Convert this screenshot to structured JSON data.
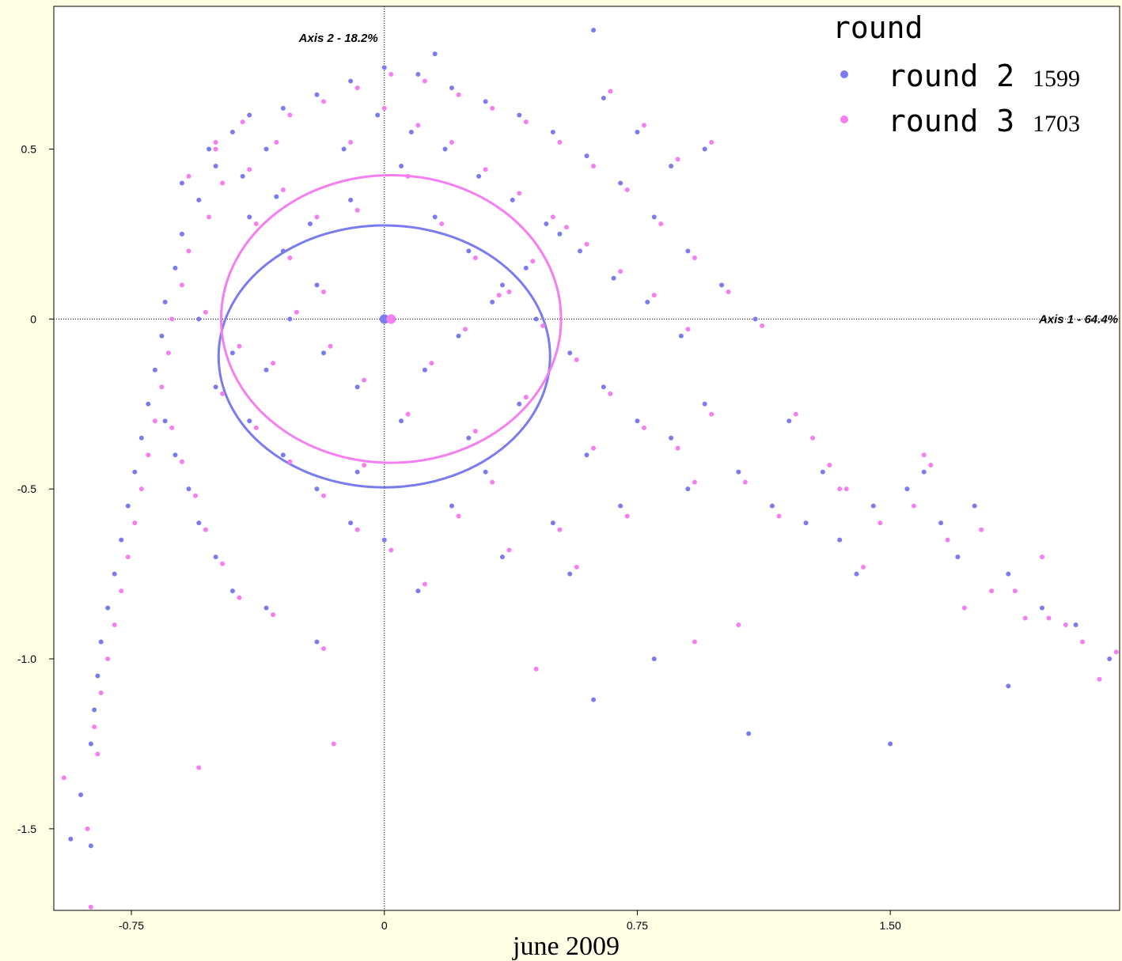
{
  "chart_data": {
    "type": "scatter",
    "x_axis": {
      "title": "Axis 1 - 64.4%",
      "range": [
        -0.98,
        2.18
      ],
      "ticks": [
        -0.75,
        0,
        0.75,
        1.5
      ],
      "tick_labels": [
        "-0.75",
        "0",
        "0.75",
        "1.50"
      ]
    },
    "y_axis": {
      "title": "Axis 2 - 18.2%",
      "range": [
        -1.74,
        0.92
      ],
      "ticks": [
        0.5,
        0,
        -0.5,
        -1.0,
        -1.5
      ],
      "tick_labels": [
        "0.5",
        "0",
        "-0.5",
        "-1.0",
        "-1.5"
      ]
    },
    "grid": false,
    "origin_lines": true,
    "legend": {
      "title": "round",
      "placement": "top-right",
      "entries": [
        {
          "label": "round 2",
          "count": "1599",
          "color": "#7b7bf0"
        },
        {
          "label": "round 3",
          "count": "1703",
          "color": "#f57ef0"
        }
      ]
    },
    "series": [
      {
        "name": "round 2",
        "color": "#7b7bf0",
        "count": 1599,
        "centroid": [
          0.0,
          0.0
        ],
        "ellipse": {
          "cx": 0.0,
          "cy": -0.11,
          "rx": 1.17,
          "ry": 0.82
        },
        "points": [
          [
            -0.45,
            0.55
          ],
          [
            -0.4,
            0.6
          ],
          [
            -0.35,
            0.5
          ],
          [
            -0.5,
            0.45
          ],
          [
            -0.55,
            0.35
          ],
          [
            -0.6,
            0.25
          ],
          [
            -0.62,
            0.15
          ],
          [
            -0.65,
            0.05
          ],
          [
            -0.66,
            -0.05
          ],
          [
            -0.68,
            -0.15
          ],
          [
            -0.7,
            -0.25
          ],
          [
            -0.72,
            -0.35
          ],
          [
            -0.74,
            -0.45
          ],
          [
            -0.76,
            -0.55
          ],
          [
            -0.78,
            -0.65
          ],
          [
            -0.8,
            -0.75
          ],
          [
            -0.82,
            -0.85
          ],
          [
            -0.84,
            -0.95
          ],
          [
            -0.85,
            -1.05
          ],
          [
            -0.86,
            -1.15
          ],
          [
            -0.87,
            -1.25
          ],
          [
            -0.9,
            -1.4
          ],
          [
            -0.93,
            -1.53
          ],
          [
            -0.87,
            -1.55
          ],
          [
            -0.3,
            0.62
          ],
          [
            -0.2,
            0.66
          ],
          [
            -0.1,
            0.7
          ],
          [
            0.0,
            0.74
          ],
          [
            0.1,
            0.72
          ],
          [
            0.2,
            0.68
          ],
          [
            0.3,
            0.64
          ],
          [
            0.4,
            0.6
          ],
          [
            0.5,
            0.55
          ],
          [
            0.6,
            0.48
          ],
          [
            0.7,
            0.4
          ],
          [
            0.8,
            0.3
          ],
          [
            0.9,
            0.2
          ],
          [
            1.0,
            0.1
          ],
          [
            1.1,
            0.0
          ],
          [
            -0.4,
            0.3
          ],
          [
            -0.3,
            0.2
          ],
          [
            -0.2,
            0.1
          ],
          [
            -0.1,
            0.35
          ],
          [
            0.05,
            0.45
          ],
          [
            0.15,
            0.3
          ],
          [
            0.25,
            0.2
          ],
          [
            0.35,
            0.1
          ],
          [
            0.45,
            0.0
          ],
          [
            0.55,
            -0.1
          ],
          [
            0.65,
            -0.2
          ],
          [
            0.75,
            -0.3
          ],
          [
            0.85,
            -0.35
          ],
          [
            0.95,
            -0.25
          ],
          [
            1.05,
            -0.45
          ],
          [
            1.15,
            -0.55
          ],
          [
            1.25,
            -0.6
          ],
          [
            1.35,
            -0.65
          ],
          [
            1.45,
            -0.55
          ],
          [
            1.55,
            -0.5
          ],
          [
            1.65,
            -0.6
          ],
          [
            1.75,
            -0.55
          ],
          [
            1.85,
            -0.75
          ],
          [
            1.95,
            -0.85
          ],
          [
            2.05,
            -0.9
          ],
          [
            2.15,
            -1.0
          ],
          [
            -0.5,
            -0.2
          ],
          [
            -0.4,
            -0.3
          ],
          [
            -0.3,
            -0.4
          ],
          [
            -0.2,
            -0.5
          ],
          [
            -0.1,
            -0.6
          ],
          [
            0.0,
            -0.65
          ],
          [
            0.2,
            -0.55
          ],
          [
            0.3,
            -0.45
          ],
          [
            0.5,
            -0.6
          ],
          [
            0.7,
            -0.55
          ],
          [
            0.8,
            -1.0
          ],
          [
            0.62,
            -1.12
          ],
          [
            1.08,
            -1.22
          ],
          [
            1.5,
            -1.25
          ],
          [
            1.85,
            -1.08
          ],
          [
            0.62,
            0.85
          ],
          [
            0.15,
            0.78
          ],
          [
            -0.55,
            0.0
          ],
          [
            -0.45,
            -0.1
          ],
          [
            -0.35,
            -0.15
          ],
          [
            0.05,
            -0.3
          ],
          [
            0.25,
            -0.35
          ],
          [
            0.4,
            -0.25
          ],
          [
            0.6,
            -0.4
          ],
          [
            0.9,
            -0.5
          ],
          [
            1.2,
            -0.3
          ],
          [
            1.3,
            -0.45
          ],
          [
            1.4,
            -0.75
          ],
          [
            1.6,
            -0.45
          ],
          [
            1.7,
            -0.7
          ],
          [
            -0.6,
            0.4
          ],
          [
            -0.52,
            0.5
          ],
          [
            -0.42,
            0.42
          ],
          [
            -0.32,
            0.36
          ],
          [
            -0.22,
            0.28
          ],
          [
            -0.12,
            0.5
          ],
          [
            -0.02,
            0.6
          ],
          [
            0.08,
            0.55
          ],
          [
            0.18,
            0.5
          ],
          [
            0.28,
            0.42
          ],
          [
            0.38,
            0.35
          ],
          [
            0.48,
            0.28
          ],
          [
            0.58,
            0.2
          ],
          [
            0.68,
            0.12
          ],
          [
            0.78,
            0.05
          ],
          [
            0.88,
            -0.05
          ],
          [
            -0.65,
            -0.3
          ],
          [
            -0.62,
            -0.4
          ],
          [
            -0.58,
            -0.5
          ],
          [
            -0.55,
            -0.6
          ],
          [
            -0.5,
            -0.7
          ],
          [
            -0.45,
            -0.8
          ],
          [
            -0.35,
            -0.85
          ],
          [
            -0.2,
            -0.95
          ],
          [
            -0.28,
            0.0
          ],
          [
            -0.18,
            -0.1
          ],
          [
            -0.08,
            -0.2
          ],
          [
            0.12,
            -0.15
          ],
          [
            0.22,
            -0.05
          ],
          [
            0.32,
            0.05
          ],
          [
            0.42,
            0.15
          ],
          [
            0.52,
            0.25
          ],
          [
            0.95,
            0.5
          ],
          [
            0.65,
            0.65
          ],
          [
            0.75,
            0.55
          ],
          [
            0.85,
            0.45
          ],
          [
            -0.08,
            -0.45
          ],
          [
            0.1,
            -0.8
          ],
          [
            0.35,
            -0.7
          ],
          [
            0.55,
            -0.75
          ]
        ]
      },
      {
        "name": "round 3",
        "color": "#f57ef0",
        "count": 1703,
        "centroid": [
          0.02,
          0.0
        ],
        "ellipse": {
          "cx": 0.02,
          "cy": -0.0,
          "rx": 1.2,
          "ry": 0.9
        },
        "points": [
          [
            -0.5,
            0.5
          ],
          [
            -0.42,
            0.58
          ],
          [
            -0.32,
            0.52
          ],
          [
            -0.48,
            0.4
          ],
          [
            -0.52,
            0.3
          ],
          [
            -0.58,
            0.2
          ],
          [
            -0.6,
            0.1
          ],
          [
            -0.63,
            0.0
          ],
          [
            -0.64,
            -0.1
          ],
          [
            -0.66,
            -0.2
          ],
          [
            -0.68,
            -0.3
          ],
          [
            -0.7,
            -0.4
          ],
          [
            -0.72,
            -0.5
          ],
          [
            -0.74,
            -0.6
          ],
          [
            -0.76,
            -0.7
          ],
          [
            -0.78,
            -0.8
          ],
          [
            -0.8,
            -0.9
          ],
          [
            -0.82,
            -1.0
          ],
          [
            -0.84,
            -1.1
          ],
          [
            -0.86,
            -1.2
          ],
          [
            -0.95,
            -1.35
          ],
          [
            -0.85,
            -1.28
          ],
          [
            -0.88,
            -1.5
          ],
          [
            -0.87,
            -1.73
          ],
          [
            -0.28,
            0.6
          ],
          [
            -0.18,
            0.64
          ],
          [
            -0.08,
            0.68
          ],
          [
            0.02,
            0.72
          ],
          [
            0.12,
            0.7
          ],
          [
            0.22,
            0.66
          ],
          [
            0.32,
            0.62
          ],
          [
            0.42,
            0.58
          ],
          [
            0.52,
            0.52
          ],
          [
            0.62,
            0.45
          ],
          [
            0.72,
            0.38
          ],
          [
            0.82,
            0.28
          ],
          [
            0.92,
            0.18
          ],
          [
            1.02,
            0.08
          ],
          [
            1.12,
            -0.02
          ],
          [
            -0.38,
            0.28
          ],
          [
            -0.28,
            0.18
          ],
          [
            -0.18,
            0.08
          ],
          [
            -0.08,
            0.32
          ],
          [
            0.07,
            0.42
          ],
          [
            0.17,
            0.28
          ],
          [
            0.27,
            0.18
          ],
          [
            0.37,
            0.08
          ],
          [
            0.47,
            -0.02
          ],
          [
            0.57,
            -0.12
          ],
          [
            0.67,
            -0.22
          ],
          [
            0.77,
            -0.32
          ],
          [
            0.87,
            -0.38
          ],
          [
            0.97,
            -0.28
          ],
          [
            1.07,
            -0.48
          ],
          [
            1.17,
            -0.58
          ],
          [
            1.27,
            -0.35
          ],
          [
            1.37,
            -0.5
          ],
          [
            1.47,
            -0.6
          ],
          [
            1.57,
            -0.55
          ],
          [
            1.67,
            -0.65
          ],
          [
            1.77,
            -0.62
          ],
          [
            1.87,
            -0.8
          ],
          [
            1.97,
            -0.88
          ],
          [
            2.07,
            -0.95
          ],
          [
            2.17,
            -0.98
          ],
          [
            2.12,
            -1.06
          ],
          [
            -0.48,
            -0.22
          ],
          [
            -0.38,
            -0.32
          ],
          [
            -0.28,
            -0.42
          ],
          [
            -0.18,
            -0.52
          ],
          [
            -0.08,
            -0.62
          ],
          [
            0.02,
            -0.68
          ],
          [
            0.22,
            -0.58
          ],
          [
            0.32,
            -0.48
          ],
          [
            0.52,
            -0.62
          ],
          [
            0.72,
            -0.58
          ],
          [
            0.45,
            -1.03
          ],
          [
            0.92,
            -0.95
          ],
          [
            -0.55,
            -1.32
          ],
          [
            -0.15,
            -1.25
          ],
          [
            1.8,
            -0.8
          ],
          [
            1.9,
            -0.88
          ],
          [
            -0.53,
            0.02
          ],
          [
            -0.43,
            -0.08
          ],
          [
            -0.33,
            -0.13
          ],
          [
            0.07,
            -0.28
          ],
          [
            0.27,
            -0.33
          ],
          [
            0.42,
            -0.23
          ],
          [
            0.62,
            -0.38
          ],
          [
            0.92,
            -0.48
          ],
          [
            1.22,
            -0.28
          ],
          [
            1.32,
            -0.43
          ],
          [
            1.42,
            -0.73
          ],
          [
            1.62,
            -0.43
          ],
          [
            -0.58,
            0.42
          ],
          [
            -0.5,
            0.52
          ],
          [
            -0.4,
            0.44
          ],
          [
            -0.3,
            0.38
          ],
          [
            -0.2,
            0.3
          ],
          [
            -0.1,
            0.52
          ],
          [
            0.0,
            0.62
          ],
          [
            0.1,
            0.57
          ],
          [
            0.2,
            0.52
          ],
          [
            0.3,
            0.44
          ],
          [
            0.4,
            0.37
          ],
          [
            0.5,
            0.3
          ],
          [
            0.6,
            0.22
          ],
          [
            0.7,
            0.14
          ],
          [
            0.8,
            0.07
          ],
          [
            0.9,
            -0.03
          ],
          [
            -0.63,
            -0.32
          ],
          [
            -0.6,
            -0.42
          ],
          [
            -0.56,
            -0.52
          ],
          [
            -0.53,
            -0.62
          ],
          [
            -0.48,
            -0.72
          ],
          [
            -0.43,
            -0.82
          ],
          [
            -0.33,
            -0.87
          ],
          [
            -0.18,
            -0.97
          ],
          [
            -0.26,
            0.02
          ],
          [
            -0.16,
            -0.08
          ],
          [
            -0.06,
            -0.18
          ],
          [
            0.14,
            -0.13
          ],
          [
            0.24,
            -0.03
          ],
          [
            0.34,
            0.07
          ],
          [
            0.44,
            0.17
          ],
          [
            0.54,
            0.27
          ],
          [
            0.97,
            0.52
          ],
          [
            0.67,
            0.67
          ],
          [
            0.77,
            0.57
          ],
          [
            0.87,
            0.47
          ],
          [
            -0.06,
            -0.43
          ],
          [
            0.12,
            -0.78
          ],
          [
            0.37,
            -0.68
          ],
          [
            0.57,
            -0.73
          ],
          [
            1.05,
            -0.9
          ],
          [
            1.35,
            -0.5
          ],
          [
            1.6,
            -0.4
          ],
          [
            1.72,
            -0.85
          ],
          [
            1.95,
            -0.7
          ],
          [
            2.02,
            -0.9
          ]
        ]
      }
    ]
  },
  "footer": {
    "caption": "june 2009"
  }
}
